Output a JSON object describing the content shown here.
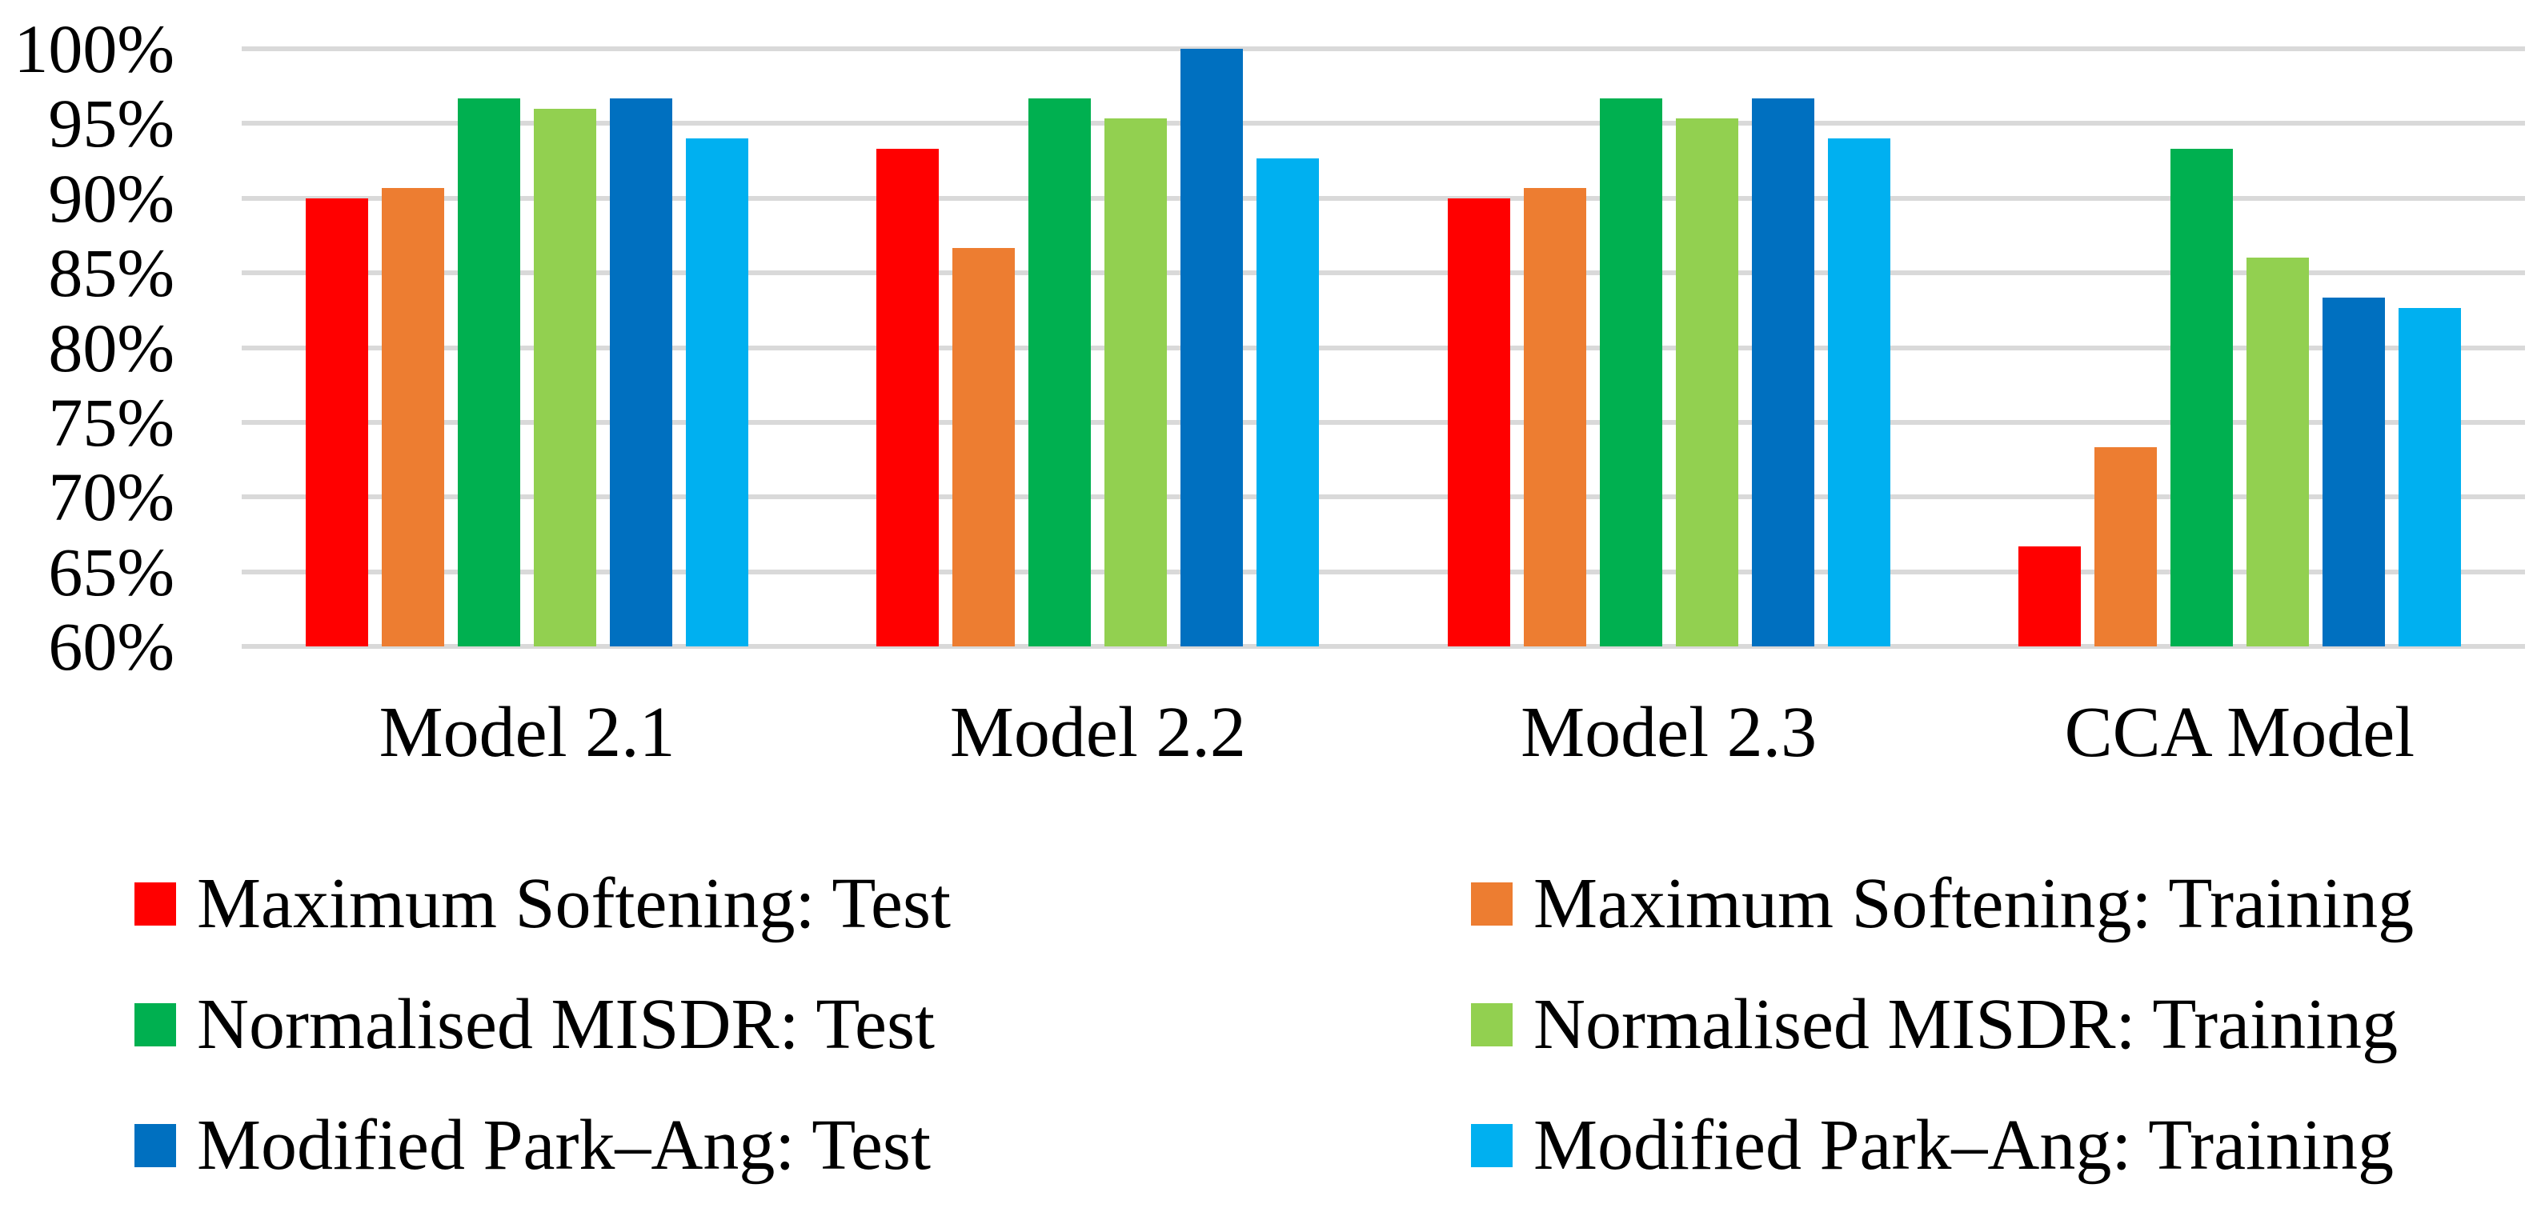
{
  "chart_data": {
    "type": "bar",
    "title": "",
    "xlabel": "",
    "ylabel": "",
    "categories": [
      "Model 2.1",
      "Model 2.2",
      "Model 2.3",
      "CCA Model"
    ],
    "series": [
      {
        "name": "Maximum Softening: Test",
        "color": "#FF0000",
        "values": [
          90.0,
          93.33,
          90.0,
          66.67
        ]
      },
      {
        "name": "Maximum Softening: Training",
        "color": "#ED7D31",
        "values": [
          90.67,
          86.67,
          90.67,
          73.33
        ]
      },
      {
        "name": "Normalised MISDR: Test",
        "color": "#00B050",
        "values": [
          96.67,
          96.67,
          96.67,
          93.33
        ]
      },
      {
        "name": "Normalised MISDR: Training",
        "color": "#92D050",
        "values": [
          96.0,
          95.33,
          95.33,
          86.0
        ]
      },
      {
        "name": "Modified Park–Ang: Test",
        "color": "#0070C0",
        "values": [
          96.67,
          100.0,
          96.67,
          83.33
        ]
      },
      {
        "name": "Modified Park–Ang: Training",
        "color": "#00B0F0",
        "values": [
          94.0,
          92.67,
          94.0,
          82.67
        ]
      }
    ],
    "ylim": [
      60,
      100
    ],
    "ytick_step": 5,
    "yticks": [
      "100%",
      "95%",
      "90%",
      "85%",
      "80%",
      "75%",
      "70%",
      "65%",
      "60%"
    ],
    "grid": true,
    "gridline_color": "#D9D9D9",
    "legend_position": "bottom, two columns (Test column left, Training column right)"
  }
}
